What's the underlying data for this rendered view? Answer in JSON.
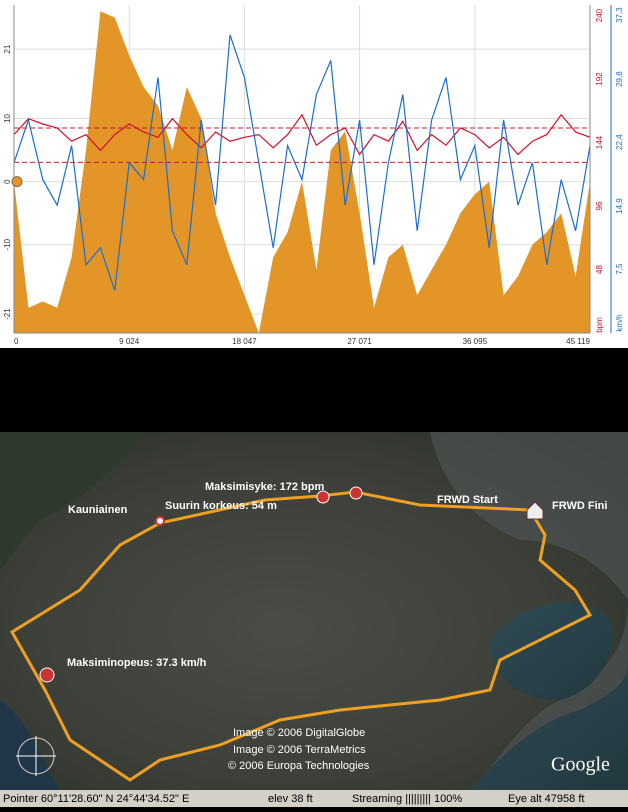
{
  "chart_data": {
    "type": "line",
    "x": [
      0,
      1128,
      2256,
      3384,
      4512,
      5640,
      6768,
      7896,
      9024,
      10152,
      11280,
      12408,
      13536,
      14664,
      15792,
      16920,
      18047,
      19175,
      20303,
      21431,
      22559,
      23687,
      24815,
      25943,
      27071,
      28199,
      29327,
      30455,
      31583,
      32711,
      33839,
      34967,
      36095,
      37223,
      38351,
      39479,
      40607,
      41735,
      42863,
      43991,
      45119
    ],
    "xlim": [
      0,
      45119
    ],
    "xticks": [
      0,
      {
        "value": 9024,
        "label": "9 024"
      },
      {
        "value": 18047,
        "label": "18 047"
      },
      {
        "value": 27071,
        "label": "27 071"
      },
      {
        "value": 36095,
        "label": "36 095"
      },
      {
        "value": 45119,
        "label": "45 119"
      }
    ],
    "ylim": [
      -24,
      28
    ],
    "yticks": [
      -21,
      -10,
      0,
      10,
      21
    ],
    "y2lim": [
      0,
      248
    ],
    "y2ticks": [
      48,
      96,
      144,
      192,
      240
    ],
    "y2label": "bpm",
    "y3lim": [
      0,
      38.5
    ],
    "y3ticks": [
      {
        "value": 7.5,
        "label": "7,5"
      },
      {
        "value": 14.9,
        "label": "14,9"
      },
      {
        "value": 22.4,
        "label": "22,4"
      },
      {
        "value": 29.8,
        "label": "29,8"
      },
      {
        "value": 37.3,
        "label": "37,3"
      }
    ],
    "y3label": "km/h",
    "grid": true,
    "hr_limits": [
      155,
      129
    ],
    "series": [
      {
        "name": "altitude",
        "type": "area",
        "color": "#e39528",
        "values": [
          0,
          -20,
          -19,
          -20,
          -12,
          5,
          27,
          26,
          20,
          15,
          12,
          5,
          15,
          10,
          -5,
          -12,
          -18,
          -24,
          -12,
          -8,
          0,
          -14,
          5,
          8,
          -5,
          -20,
          -12,
          -10,
          -18,
          -14,
          -10,
          -5,
          -2,
          0,
          -18,
          -15,
          -10,
          -8,
          -5,
          -15,
          0
        ]
      },
      {
        "name": "heart rate",
        "axis": "y2",
        "color": "#d0102a",
        "values": [
          150,
          162,
          158,
          155,
          145,
          150,
          138,
          150,
          158,
          152,
          148,
          162,
          150,
          140,
          152,
          145,
          148,
          150,
          140,
          150,
          165,
          142,
          150,
          155,
          135,
          150,
          145,
          160,
          138,
          150,
          142,
          155,
          150,
          140,
          148,
          135,
          145,
          150,
          165,
          152,
          148
        ]
      },
      {
        "name": "speed",
        "axis": "y3",
        "color": "#1a6fd0",
        "values": [
          20,
          25,
          18,
          15,
          22,
          8,
          10,
          5,
          20,
          18,
          30,
          12,
          8,
          25,
          15,
          35,
          30,
          20,
          10,
          22,
          18,
          28,
          32,
          15,
          25,
          8,
          20,
          28,
          12,
          25,
          30,
          18,
          22,
          10,
          25,
          15,
          20,
          8,
          18,
          12,
          22
        ]
      }
    ]
  },
  "map": {
    "labels": [
      "Maksimisyke: 172 bpm",
      "Suurin korkeus: 54 m",
      "Kauniainen",
      "FRWD Start",
      "FRWD Fini",
      "Maksiminopeus: 37.3 km/h"
    ],
    "credits": [
      "Image © 2006 DigitalGlobe",
      "Image © 2006 TerraMetrics",
      "© 2006 Europa Technologies"
    ],
    "brand": "Google"
  },
  "status_bar": {
    "pointer": "Pointer  60°11'28.60\" N   24°44'34.52\" E",
    "elev": "elev   38 ft",
    "streaming": "Streaming ||||||||| 100%",
    "eye": "Eye  alt   47958 ft"
  }
}
